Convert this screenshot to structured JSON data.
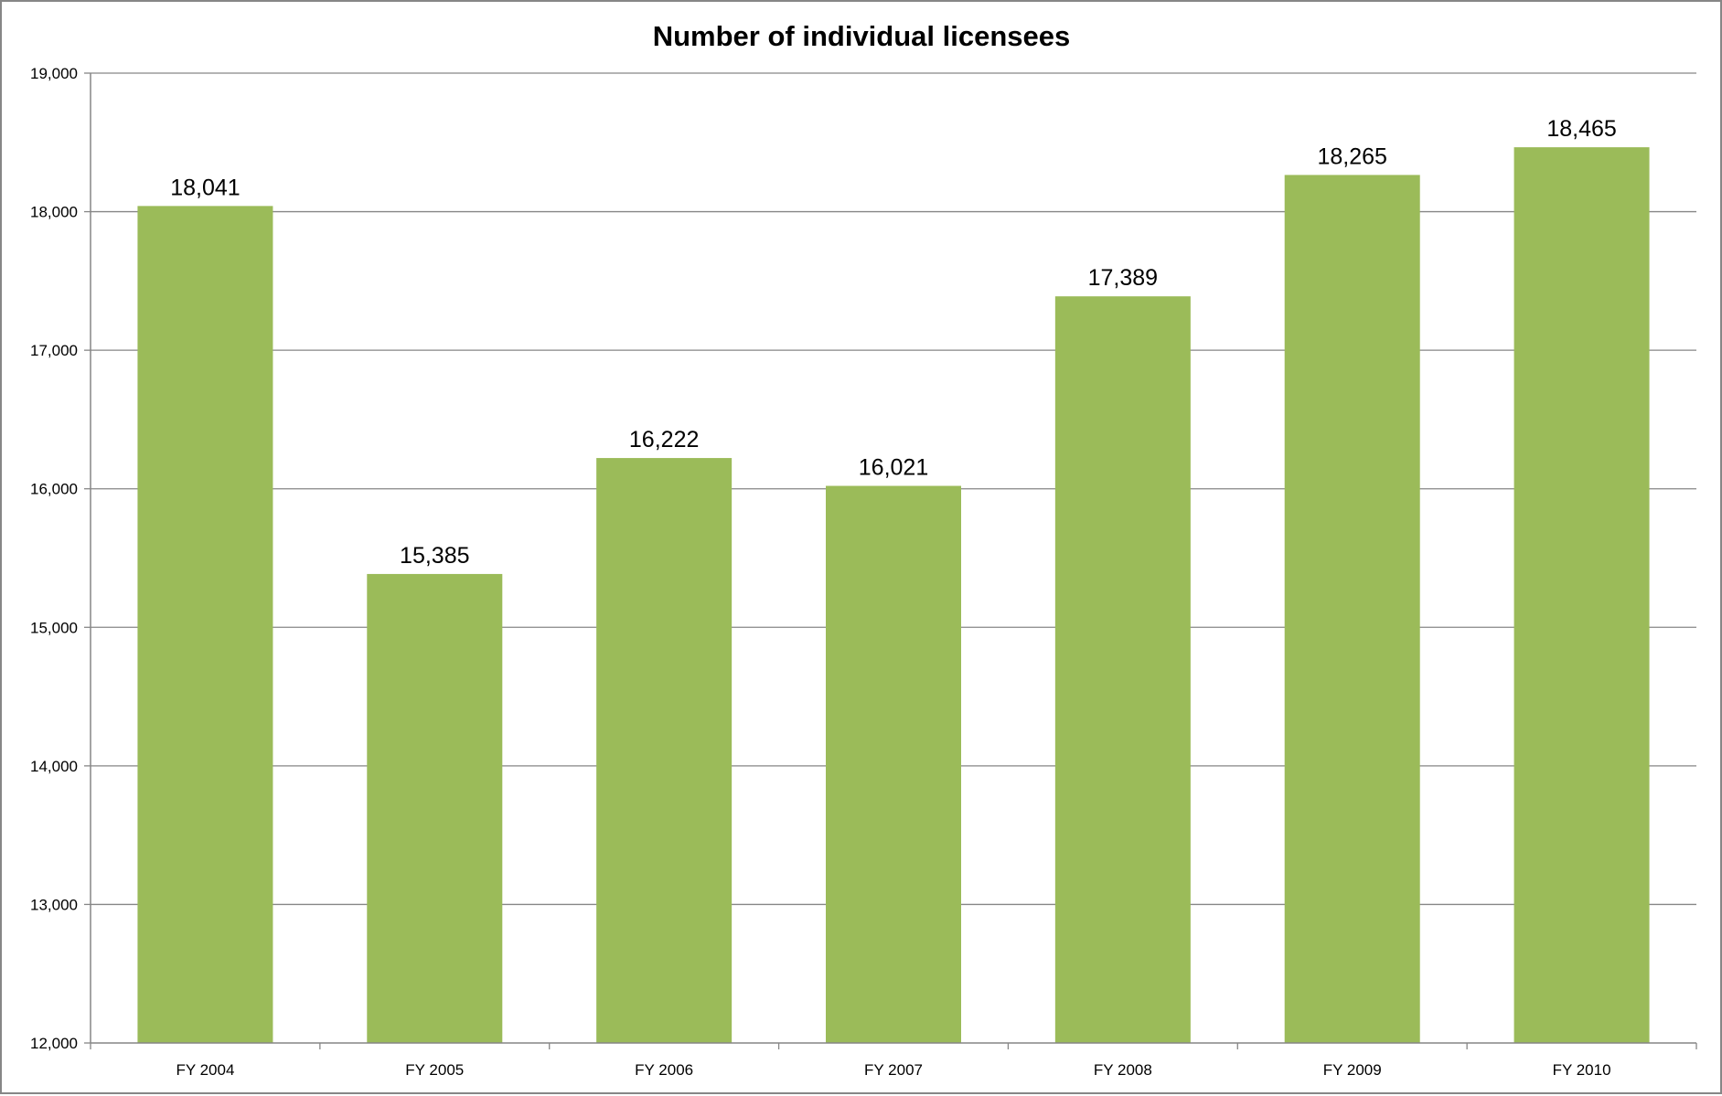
{
  "chart_data": {
    "type": "bar",
    "title": "Number of individual licensees",
    "xlabel": "",
    "ylabel": "",
    "categories": [
      "FY 2004",
      "FY 2005",
      "FY 2006",
      "FY 2007",
      "FY 2008",
      "FY 2009",
      "FY 2010"
    ],
    "values": [
      18041,
      15385,
      16222,
      16021,
      17389,
      18265,
      18465
    ],
    "data_labels": [
      "18,041",
      "15,385",
      "16,222",
      "16,021",
      "17,389",
      "18,265",
      "18,465"
    ],
    "ylim": [
      12000,
      19000
    ],
    "yticks": [
      12000,
      13000,
      14000,
      15000,
      16000,
      17000,
      18000,
      19000
    ],
    "ytick_labels": [
      "12,000",
      "13,000",
      "14,000",
      "15,000",
      "16,000",
      "17,000",
      "18,000",
      "19,000"
    ],
    "grid": true,
    "legend": "none",
    "colors": {
      "bar": "#9BBB59",
      "grid": "#868686",
      "axis": "#868686"
    }
  }
}
